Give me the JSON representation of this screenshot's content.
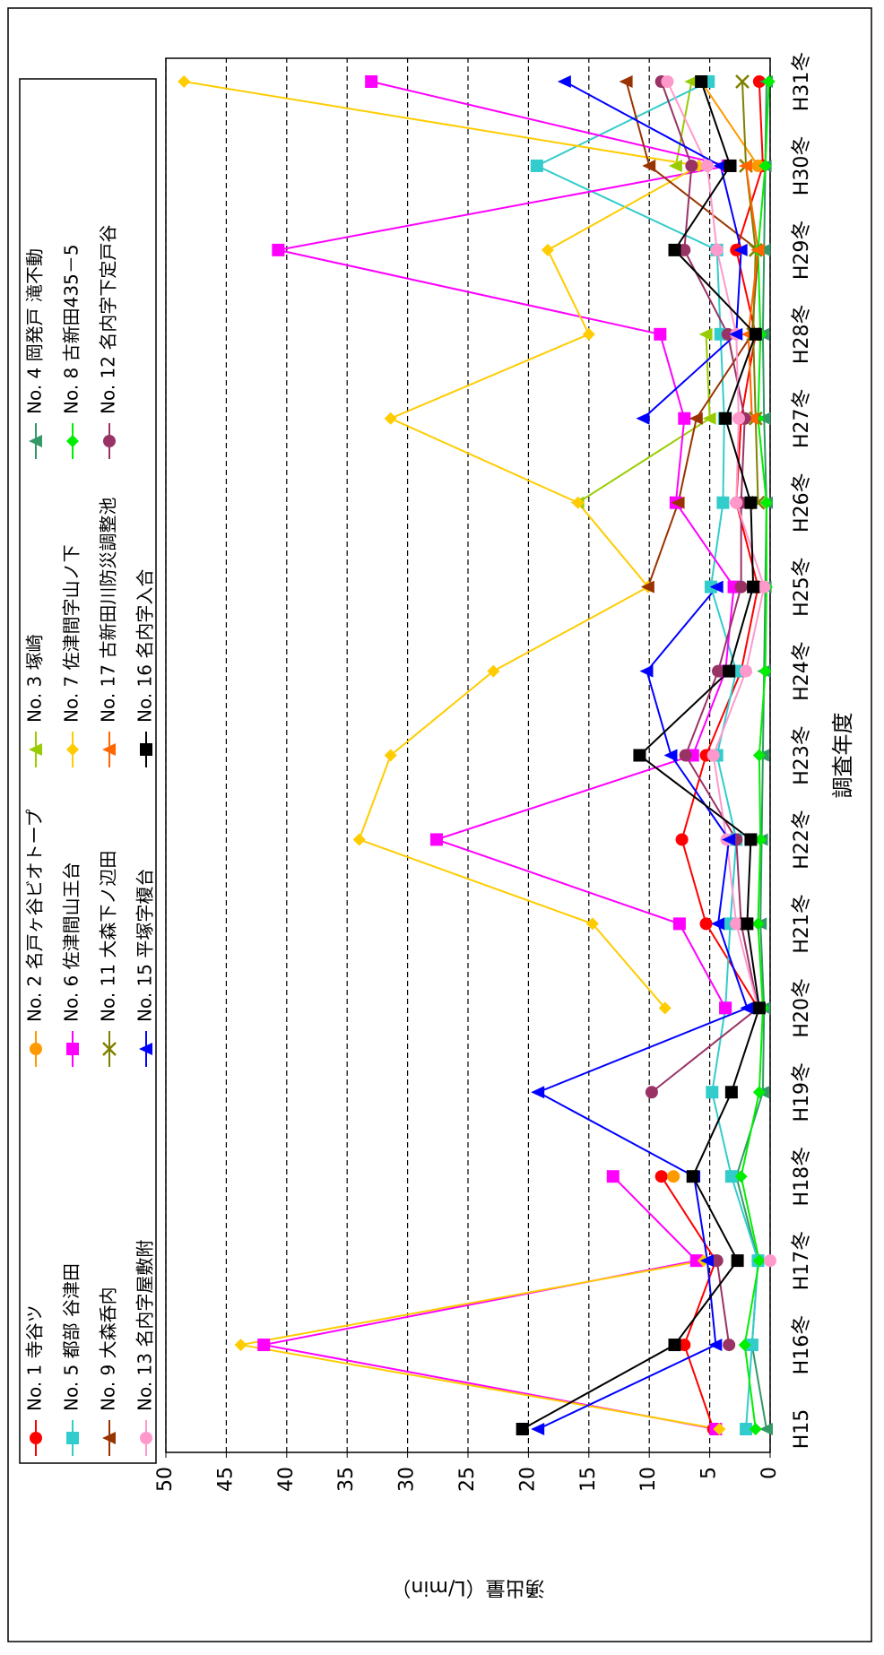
{
  "chart_data": {
    "type": "line",
    "x_label": "調査年度",
    "y_label": "湧出量（L/min）",
    "categories": [
      "H15",
      "H16冬",
      "H17冬",
      "H18冬",
      "H19冬",
      "H20冬",
      "H21冬",
      "H22冬",
      "H23冬",
      "H24冬",
      "H25冬",
      "H26冬",
      "H27冬",
      "H28冬",
      "H29冬",
      "H30冬",
      "H31冬"
    ],
    "ylim": [
      0,
      50
    ],
    "yticks": [
      0,
      5,
      10,
      15,
      20,
      25,
      30,
      35,
      40,
      45,
      50
    ],
    "grid": true,
    "legend_position": "top",
    "series": [
      {
        "name": "No. 1 寺谷ツ",
        "color": "#ff0000",
        "marker": "circle",
        "values": [
          4.7,
          7.1,
          4.5,
          9.0,
          null,
          1.0,
          5.3,
          7.3,
          5.3,
          2.4,
          1.0,
          2.8,
          2.4,
          1.2,
          2.8,
          0.6,
          0.9
        ]
      },
      {
        "name": "No. 2 名戸ヶ谷ビオトープ",
        "color": "#ff9900",
        "marker": "circle",
        "values": [
          null,
          null,
          null,
          8.0,
          null,
          null,
          null,
          null,
          null,
          null,
          null,
          null,
          null,
          null,
          null,
          1.0,
          5.7
        ]
      },
      {
        "name": "No. 3 塚崎",
        "color": "#99cc00",
        "marker": "triangle",
        "values": [
          null,
          null,
          null,
          null,
          null,
          null,
          null,
          null,
          null,
          null,
          null,
          15.9,
          5.0,
          5.3,
          null,
          7.8,
          6.5
        ]
      },
      {
        "name": "No. 4 岡発戸 滝不動",
        "color": "#339966",
        "marker": "triangle",
        "values": [
          0.3,
          1.5,
          1.0,
          2.8,
          0.6,
          0.5,
          0.8,
          0.7,
          0.6,
          0.5,
          0.4,
          0.3,
          0.5,
          0.6,
          0.5,
          0.4,
          0.3
        ]
      },
      {
        "name": "No. 5 都部 谷津田",
        "color": "#33cccc",
        "marker": "square",
        "values": [
          2.0,
          1.5,
          1.0,
          3.2,
          4.8,
          3.7,
          3.3,
          2.8,
          4.4,
          2.8,
          4.9,
          3.9,
          3.8,
          4.1,
          4.4,
          19.3,
          5.1
        ]
      },
      {
        "name": "No. 6 佐津間山王台",
        "color": "#ff00ff",
        "marker": "square",
        "values": [
          4.5,
          41.9,
          6.1,
          13.0,
          null,
          3.7,
          7.5,
          27.6,
          6.4,
          3.7,
          3.0,
          7.8,
          7.1,
          9.1,
          40.7,
          3.5,
          33.0
        ]
      },
      {
        "name": "No. 7 佐津間字山ノ下",
        "color": "#ffcc00",
        "marker": "diamond",
        "values": [
          4.2,
          43.8,
          5.5,
          null,
          null,
          8.7,
          14.7,
          34.0,
          31.4,
          22.9,
          10.1,
          15.9,
          31.4,
          15.0,
          18.4,
          5.9,
          48.5
        ]
      },
      {
        "name": "No. 8 古新田435－5",
        "color": "#00ee00",
        "marker": "diamond",
        "values": [
          1.2,
          2.1,
          0.9,
          2.4,
          0.9,
          0.6,
          1.0,
          0.8,
          0.9,
          0.4,
          0.3,
          0.3,
          1.0,
          0.8,
          1.0,
          0.4,
          0.1
        ]
      },
      {
        "name": "No. 9 大森呑内",
        "color": "#993300",
        "marker": "triangle",
        "values": [
          null,
          null,
          null,
          null,
          null,
          null,
          null,
          null,
          null,
          null,
          10.1,
          7.6,
          6.1,
          1.5,
          1.0,
          10.0,
          11.9
        ]
      },
      {
        "name": "No. 11 大森下ノ辺田",
        "color": "#808000",
        "marker": "x",
        "values": [
          null,
          null,
          null,
          null,
          null,
          null,
          null,
          null,
          null,
          null,
          null,
          1.0,
          1.2,
          1.4,
          1.2,
          2.0,
          2.3
        ]
      },
      {
        "name": "No. 17 古新田川防災調整池",
        "color": "#ff6600",
        "marker": "triangle",
        "values": [
          null,
          null,
          null,
          null,
          null,
          null,
          null,
          null,
          null,
          null,
          null,
          null,
          1.5,
          1.8,
          1.0,
          2.0,
          null
        ]
      },
      {
        "name": "No. 12 名内字下定戸谷",
        "color": "#993366",
        "marker": "circle",
        "values": [
          null,
          3.4,
          4.4,
          null,
          9.8,
          1.0,
          2.4,
          2.8,
          7.0,
          4.3,
          2.4,
          2.4,
          2.1,
          3.5,
          7.1,
          6.5,
          9.0
        ]
      },
      {
        "name": "No. 13 名内字屋敷附",
        "color": "#ff99cc",
        "marker": "circle",
        "values": [
          null,
          null,
          0.0,
          null,
          null,
          1.0,
          2.8,
          3.6,
          4.7,
          2.0,
          0.5,
          2.8,
          2.6,
          2.8,
          4.4,
          5.2,
          8.5
        ]
      },
      {
        "name": "No. 15 平塚字榎台",
        "color": "#0000ff",
        "marker": "triangle",
        "values": [
          19.2,
          4.5,
          5.2,
          6.3,
          19.2,
          1.9,
          4.3,
          3.4,
          8.2,
          10.2,
          4.4,
          null,
          10.5,
          2.8,
          2.4,
          4.1,
          17.0
        ]
      },
      {
        "name": "No. 16 名内字入合",
        "color": "#000000",
        "marker": "square",
        "values": [
          20.5,
          7.9,
          2.7,
          6.4,
          3.2,
          0.9,
          1.9,
          1.6,
          10.8,
          3.4,
          1.4,
          1.6,
          3.7,
          1.2,
          7.9,
          3.3,
          5.7
        ]
      }
    ]
  }
}
